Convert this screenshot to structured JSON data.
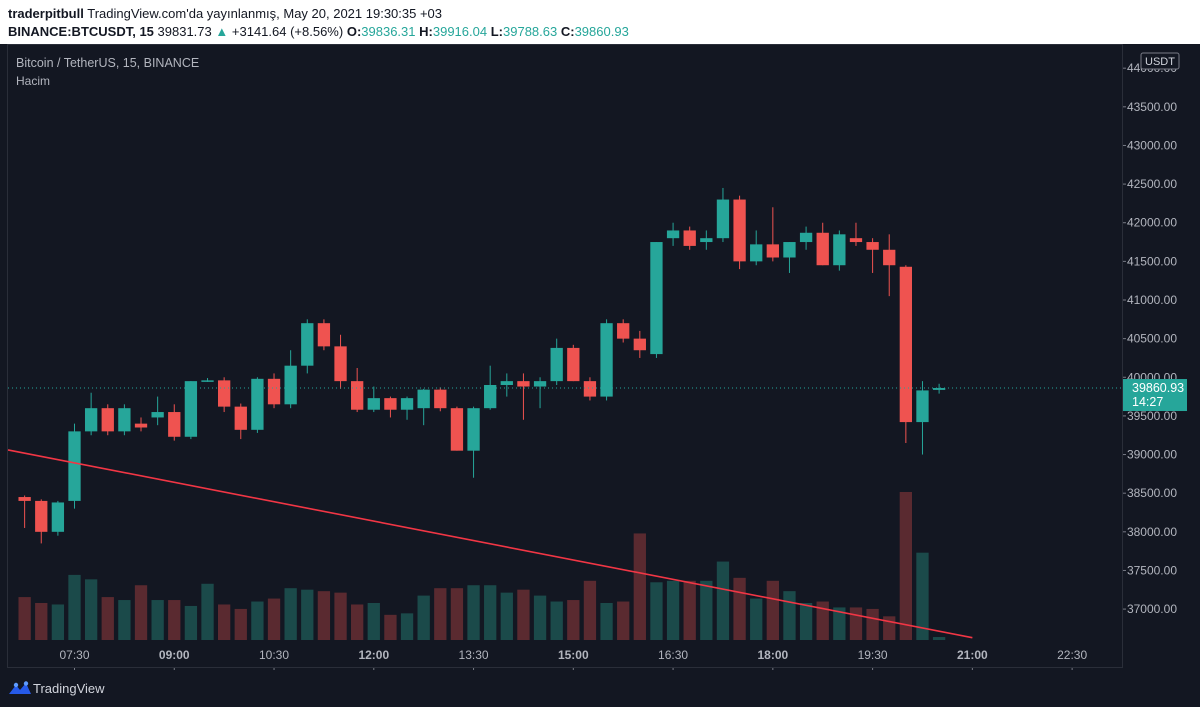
{
  "header": {
    "author": "traderpitbull",
    "published": "TradingView.com'da yayınlanmış, May 20, 2021 19:30:35 +03",
    "symbol": "BINANCE:BTCUSDT, 15",
    "price": "39831.73",
    "change_arrow": "▲",
    "change": "+3141.64 (+8.56%)",
    "o_label": "O:",
    "o_value": "39836.31",
    "h_label": "H:",
    "h_value": "39916.04",
    "l_label": "L:",
    "l_value": "39788.63",
    "c_label": "C:",
    "c_value": "39860.93"
  },
  "legend": {
    "title": "Bitcoin / TetherUS, 15, BINANCE",
    "volume": "Hacim"
  },
  "currency_badge": "USDT",
  "price_badge": {
    "value": "39860.93",
    "countdown": "14:27"
  },
  "footer": {
    "brand": "TradingView"
  },
  "colors": {
    "up": "#26a69a",
    "down": "#ef5350",
    "up_volume": "#1b4a4a",
    "down_volume": "#5a2a30",
    "trendline": "#f23645",
    "background": "#131722",
    "grid_text": "#b2b5be"
  },
  "chart_data": {
    "type": "candlestick",
    "interval_minutes": 15,
    "yaxis_ticks": [
      "44000.00",
      "43500.00",
      "43000.00",
      "42500.00",
      "42000.00",
      "41500.00",
      "41000.00",
      "40500.00",
      "40000.00",
      "39500.00",
      "39000.00",
      "38500.00",
      "38000.00",
      "37500.00",
      "37000.00"
    ],
    "xaxis_ticks": [
      "07:30",
      "09:00",
      "10:30",
      "12:00",
      "13:30",
      "15:00",
      "16:30",
      "18:00",
      "19:30",
      "21:00",
      "22:30"
    ],
    "time_range": [
      "06:30",
      "23:15"
    ],
    "price_range": [
      36600,
      44300
    ],
    "last_price_line": 39860.93,
    "trendline": [
      {
        "t": "06:30",
        "p": 39060
      },
      {
        "t": "21:00",
        "p": 36630
      }
    ],
    "candles": [
      {
        "t": "06:45",
        "o": 38450,
        "h": 38470,
        "l": 38050,
        "c": 38400
      },
      {
        "t": "07:00",
        "o": 38400,
        "h": 38420,
        "l": 37850,
        "c": 38000
      },
      {
        "t": "07:15",
        "o": 38000,
        "h": 38400,
        "l": 37950,
        "c": 38380
      },
      {
        "t": "07:30",
        "o": 38400,
        "h": 39400,
        "l": 38300,
        "c": 39300
      },
      {
        "t": "07:45",
        "o": 39300,
        "h": 39800,
        "l": 39250,
        "c": 39600
      },
      {
        "t": "08:00",
        "o": 39600,
        "h": 39650,
        "l": 39250,
        "c": 39300
      },
      {
        "t": "08:15",
        "o": 39300,
        "h": 39650,
        "l": 39250,
        "c": 39600
      },
      {
        "t": "08:30",
        "o": 39400,
        "h": 39480,
        "l": 39300,
        "c": 39350
      },
      {
        "t": "08:45",
        "o": 39480,
        "h": 39750,
        "l": 39380,
        "c": 39550
      },
      {
        "t": "09:00",
        "o": 39550,
        "h": 39650,
        "l": 39180,
        "c": 39230
      },
      {
        "t": "09:15",
        "o": 39230,
        "h": 39950,
        "l": 39200,
        "c": 39950
      },
      {
        "t": "09:30",
        "o": 39950,
        "h": 39990,
        "l": 39940,
        "c": 39960
      },
      {
        "t": "09:45",
        "o": 39960,
        "h": 40000,
        "l": 39550,
        "c": 39620
      },
      {
        "t": "10:00",
        "o": 39620,
        "h": 39660,
        "l": 39200,
        "c": 39320
      },
      {
        "t": "10:15",
        "o": 39320,
        "h": 40000,
        "l": 39280,
        "c": 39980
      },
      {
        "t": "10:30",
        "o": 39980,
        "h": 40050,
        "l": 39600,
        "c": 39650
      },
      {
        "t": "10:45",
        "o": 39650,
        "h": 40350,
        "l": 39600,
        "c": 40150
      },
      {
        "t": "11:00",
        "o": 40150,
        "h": 40750,
        "l": 40050,
        "c": 40700
      },
      {
        "t": "11:15",
        "o": 40700,
        "h": 40750,
        "l": 40350,
        "c": 40400
      },
      {
        "t": "11:30",
        "o": 40400,
        "h": 40550,
        "l": 39850,
        "c": 39950
      },
      {
        "t": "11:45",
        "o": 39950,
        "h": 40120,
        "l": 39550,
        "c": 39580
      },
      {
        "t": "12:00",
        "o": 39580,
        "h": 39880,
        "l": 39550,
        "c": 39730
      },
      {
        "t": "12:15",
        "o": 39730,
        "h": 39750,
        "l": 39480,
        "c": 39580
      },
      {
        "t": "12:30",
        "o": 39580,
        "h": 39750,
        "l": 39450,
        "c": 39730
      },
      {
        "t": "12:45",
        "o": 39600,
        "h": 39850,
        "l": 39380,
        "c": 39840
      },
      {
        "t": "13:00",
        "o": 39840,
        "h": 39870,
        "l": 39560,
        "c": 39600
      },
      {
        "t": "13:15",
        "o": 39600,
        "h": 39620,
        "l": 39050,
        "c": 39050
      },
      {
        "t": "13:30",
        "o": 39050,
        "h": 39620,
        "l": 38700,
        "c": 39600
      },
      {
        "t": "13:45",
        "o": 39600,
        "h": 40150,
        "l": 39580,
        "c": 39900
      },
      {
        "t": "14:00",
        "o": 39900,
        "h": 40050,
        "l": 39750,
        "c": 39950
      },
      {
        "t": "14:15",
        "o": 39950,
        "h": 40050,
        "l": 39450,
        "c": 39880
      },
      {
        "t": "14:30",
        "o": 39880,
        "h": 40000,
        "l": 39600,
        "c": 39950
      },
      {
        "t": "14:45",
        "o": 39950,
        "h": 40500,
        "l": 39900,
        "c": 40380
      },
      {
        "t": "15:00",
        "o": 40380,
        "h": 40420,
        "l": 39950,
        "c": 39950
      },
      {
        "t": "15:15",
        "o": 39950,
        "h": 40000,
        "l": 39700,
        "c": 39750
      },
      {
        "t": "15:30",
        "o": 39750,
        "h": 40750,
        "l": 39700,
        "c": 40700
      },
      {
        "t": "15:45",
        "o": 40700,
        "h": 40750,
        "l": 40450,
        "c": 40500
      },
      {
        "t": "16:00",
        "o": 40500,
        "h": 40600,
        "l": 40250,
        "c": 40350
      },
      {
        "t": "16:15",
        "o": 40300,
        "h": 41750,
        "l": 40250,
        "c": 41750
      },
      {
        "t": "16:30",
        "o": 41800,
        "h": 42000,
        "l": 41700,
        "c": 41900
      },
      {
        "t": "16:45",
        "o": 41900,
        "h": 41950,
        "l": 41650,
        "c": 41700
      },
      {
        "t": "17:00",
        "o": 41750,
        "h": 41900,
        "l": 41650,
        "c": 41800
      },
      {
        "t": "17:15",
        "o": 41800,
        "h": 42450,
        "l": 41750,
        "c": 42300
      },
      {
        "t": "17:30",
        "o": 42300,
        "h": 42350,
        "l": 41400,
        "c": 41500
      },
      {
        "t": "17:45",
        "o": 41500,
        "h": 41900,
        "l": 41450,
        "c": 41720
      },
      {
        "t": "18:00",
        "o": 41720,
        "h": 42200,
        "l": 41500,
        "c": 41550
      },
      {
        "t": "18:15",
        "o": 41550,
        "h": 41750,
        "l": 41350,
        "c": 41750
      },
      {
        "t": "18:30",
        "o": 41750,
        "h": 41950,
        "l": 41650,
        "c": 41870
      },
      {
        "t": "18:45",
        "o": 41870,
        "h": 42000,
        "l": 41450,
        "c": 41450
      },
      {
        "t": "19:00",
        "o": 41450,
        "h": 41900,
        "l": 41380,
        "c": 41850
      },
      {
        "t": "19:15",
        "o": 41800,
        "h": 42000,
        "l": 41700,
        "c": 41750
      },
      {
        "t": "19:30",
        "o": 41750,
        "h": 41800,
        "l": 41350,
        "c": 41650
      },
      {
        "t": "19:45",
        "o": 41650,
        "h": 41850,
        "l": 41050,
        "c": 41450
      },
      {
        "t": "20:00",
        "o": 41430,
        "h": 41450,
        "l": 39150,
        "c": 39420
      },
      {
        "t": "20:15",
        "o": 39420,
        "h": 39950,
        "l": 39000,
        "c": 39830
      },
      {
        "t": "20:30",
        "o": 39836.31,
        "h": 39916.04,
        "l": 39788.63,
        "c": 39860.93
      }
    ],
    "volumes": [
      0.29,
      0.25,
      0.24,
      0.44,
      0.41,
      0.29,
      0.27,
      0.37,
      0.27,
      0.27,
      0.23,
      0.38,
      0.24,
      0.21,
      0.26,
      0.28,
      0.35,
      0.34,
      0.33,
      0.32,
      0.24,
      0.25,
      0.17,
      0.18,
      0.3,
      0.35,
      0.35,
      0.37,
      0.37,
      0.32,
      0.34,
      0.3,
      0.26,
      0.27,
      0.4,
      0.25,
      0.26,
      0.72,
      0.39,
      0.4,
      0.4,
      0.4,
      0.53,
      0.42,
      0.28,
      0.4,
      0.33,
      0.25,
      0.26,
      0.22,
      0.22,
      0.21,
      0.16,
      1.0,
      0.59,
      0.02
    ]
  }
}
